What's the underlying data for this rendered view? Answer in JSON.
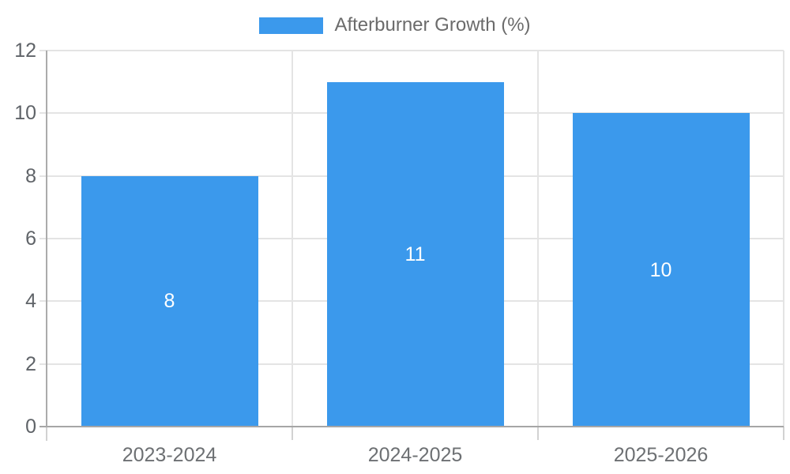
{
  "chart_data": {
    "type": "bar",
    "title": "",
    "legend": {
      "label": "Afterburner Growth (%)",
      "position": "top"
    },
    "categories": [
      "2023-2024",
      "2024-2025",
      "2025-2026"
    ],
    "series": [
      {
        "name": "Afterburner Growth (%)",
        "values": [
          8,
          11,
          10
        ]
      }
    ],
    "value_labels": [
      "8",
      "11",
      "10"
    ],
    "yticks": [
      0,
      2,
      4,
      6,
      8,
      10,
      12
    ],
    "ylim": [
      0,
      12
    ],
    "grid": true,
    "colors": {
      "bar": "#3b99ec",
      "gridline": "#e4e4e4",
      "axis_line": "#ababab",
      "baseline": "#a6a6a6",
      "tick": "#d2d2d2",
      "y_tick_label": "#5f6368",
      "x_tick_label": "#6d7073",
      "value_label": "#ffffff",
      "legend_text": "#6b6b6b",
      "background": "#ffffff"
    }
  }
}
